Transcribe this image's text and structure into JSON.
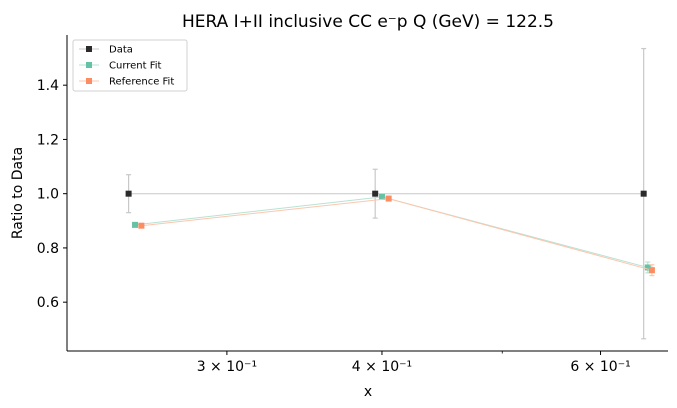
{
  "chart_data": {
    "type": "scatter",
    "title": "HERA I+II inclusive CC e$^-$p Q (GeV) = 122.5",
    "title_display": "HERA I+II inclusive CC e⁻p Q (GeV) = 122.5",
    "xlabel": "x",
    "ylabel": "Ratio to Data",
    "x_scale": "log",
    "xlim": [
      0.223,
      0.68
    ],
    "ylim": [
      0.42,
      1.585
    ],
    "x_ticks": [
      {
        "value": 0.3,
        "label": "3 × 10⁻¹"
      },
      {
        "value": 0.4,
        "label": "4 × 10⁻¹"
      },
      {
        "value": 0.6,
        "label": "6 × 10⁻¹"
      }
    ],
    "x_minor_ticks": [
      0.5
    ],
    "y_ticks": [
      {
        "value": 0.6,
        "label": "0.6"
      },
      {
        "value": 0.8,
        "label": "0.8"
      },
      {
        "value": 1.0,
        "label": "1.0"
      },
      {
        "value": 1.2,
        "label": "1.2"
      },
      {
        "value": 1.4,
        "label": "1.4"
      }
    ],
    "grid": false,
    "legend_position": "top-left",
    "series": [
      {
        "name": "Data",
        "color": "#2b2b2b",
        "line_color": "#c8c8c8",
        "x": [
          0.25,
          0.395,
          0.65
        ],
        "y": [
          1.0,
          1.0,
          1.0
        ],
        "yerr": [
          0.07,
          0.09,
          0.535
        ]
      },
      {
        "name": "Current Fit",
        "color": "#66c2a5",
        "line_color": "#b6e3d3",
        "x": [
          0.253,
          0.4,
          0.655
        ],
        "y": [
          0.885,
          0.988,
          0.728
        ],
        "yerr": [
          0.0,
          0.0,
          0.02
        ]
      },
      {
        "name": "Reference Fit",
        "color": "#fc8d62",
        "line_color": "#fdc6ae",
        "x": [
          0.256,
          0.405,
          0.66
        ],
        "y": [
          0.882,
          0.982,
          0.718
        ],
        "yerr": [
          0.0,
          0.0,
          0.02
        ]
      }
    ]
  }
}
